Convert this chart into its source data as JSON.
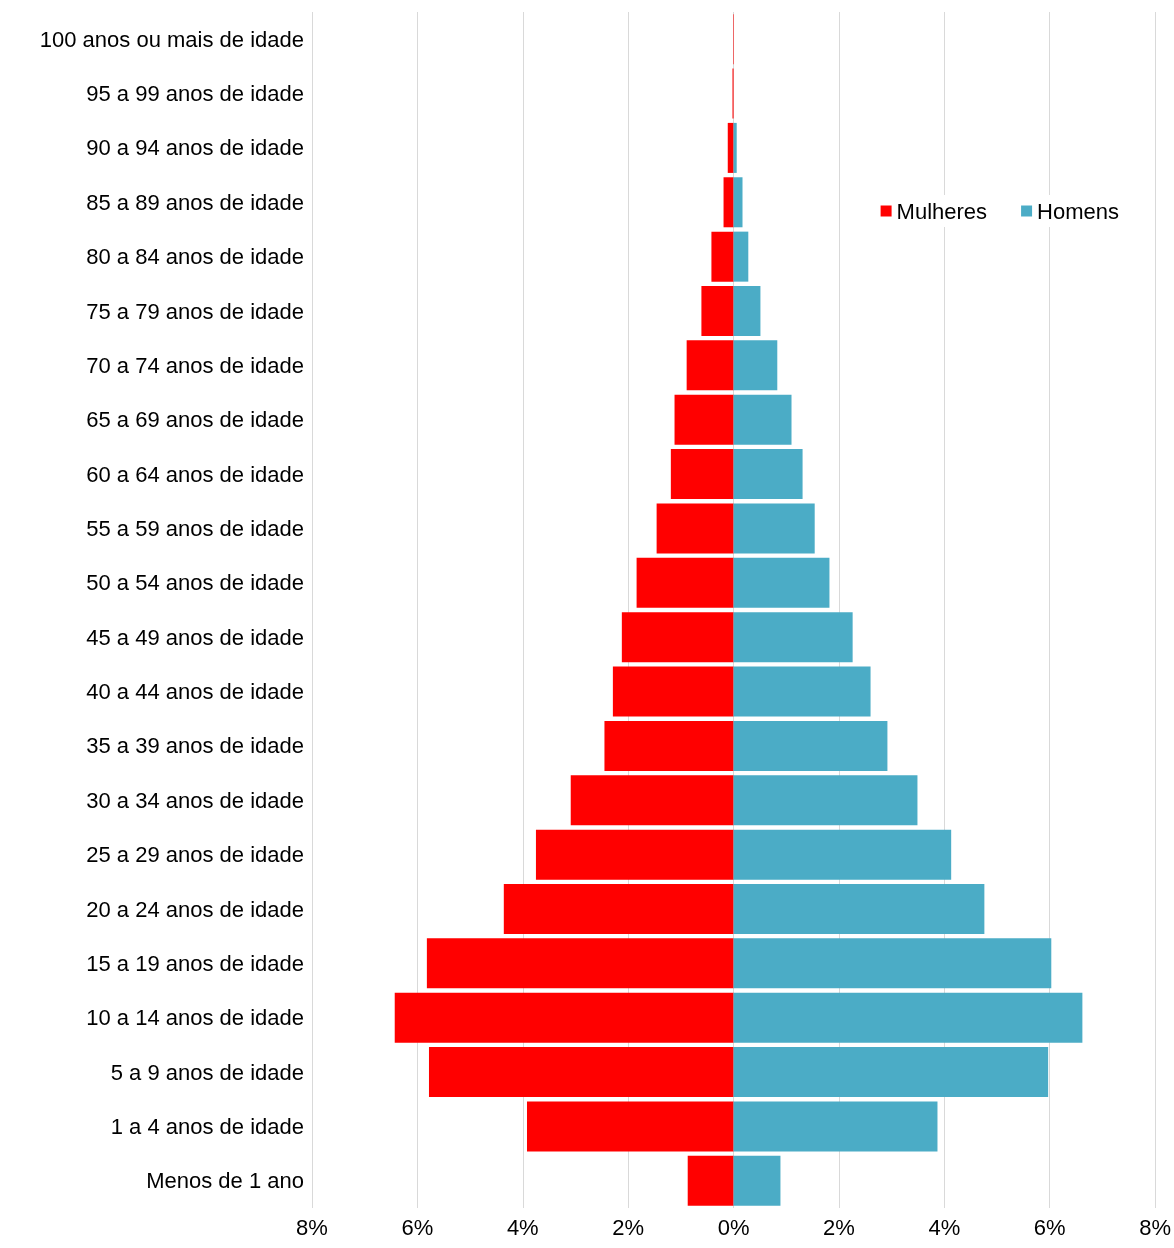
{
  "chart_data": {
    "type": "bar",
    "orientation": "horizontal",
    "categories": [
      "100 anos ou mais de idade",
      "95 a 99 anos de idade",
      "90 a 94 anos de idade",
      "85 a 89 anos de idade",
      "80 a 84 anos de idade",
      "75 a 79 anos de idade",
      "70 a 74 anos de idade",
      "65 a 69 anos de idade",
      "60 a 64 anos de idade",
      "55 a 59 anos de idade",
      "50 a 54 anos de idade",
      "45 a 49 anos de idade",
      "40 a 44 anos de idade",
      "35 a 39 anos de idade",
      "30 a 34 anos de idade",
      "25 a 29 anos de idade",
      "20 a 24 anos de idade",
      "15 a 19 anos de idade",
      "10 a 14 anos de idade",
      "5 a 9 anos de idade",
      "1 a 4 anos de idade",
      "Menos de 1 ano"
    ],
    "series": [
      {
        "name": "Mulheres",
        "color": "#ff0000",
        "values": [
          -0.01,
          -0.02,
          -0.11,
          -0.19,
          -0.42,
          -0.61,
          -0.89,
          -1.12,
          -1.19,
          -1.46,
          -1.84,
          -2.12,
          -2.29,
          -2.45,
          -3.09,
          -3.75,
          -4.36,
          -5.82,
          -6.43,
          -5.78,
          -3.92,
          -0.87
        ]
      },
      {
        "name": "Homens",
        "color": "#4bacc6",
        "values": [
          0,
          null,
          0.06,
          0.17,
          0.28,
          0.51,
          0.83,
          1.1,
          1.31,
          1.54,
          1.82,
          2.26,
          2.6,
          2.92,
          3.49,
          4.13,
          4.76,
          6.03,
          6.62,
          5.97,
          3.87,
          0.89
        ]
      }
    ],
    "xlim": [
      -8,
      8
    ],
    "xticks": [
      {
        "value": -8,
        "label": "8%"
      },
      {
        "value": -6,
        "label": "6%"
      },
      {
        "value": -4,
        "label": "4%"
      },
      {
        "value": -2,
        "label": "2%"
      },
      {
        "value": 0,
        "label": "0%"
      },
      {
        "value": 2,
        "label": "2%"
      },
      {
        "value": 4,
        "label": "4%"
      },
      {
        "value": 6,
        "label": "6%"
      },
      {
        "value": 8,
        "label": "8%"
      }
    ],
    "stacked": true,
    "grid": "x",
    "legend": "top right"
  }
}
